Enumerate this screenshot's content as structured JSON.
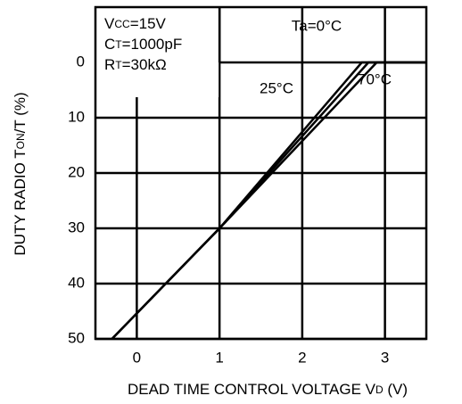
{
  "chart_data": {
    "type": "line",
    "xlabel": [
      {
        "text": "DEAD TIME CONTROL VOLTAGE V"
      },
      {
        "text": "D",
        "sub": true
      },
      {
        "text": " (V)"
      }
    ],
    "ylabel": [
      {
        "text": "DUTY RADIO T"
      },
      {
        "text": "ON",
        "sub": true
      },
      {
        "text": "/T (%)"
      }
    ],
    "conditions": [
      [
        {
          "text": "V"
        },
        {
          "text": "CC",
          "sub": true
        },
        {
          "text": "=15V"
        }
      ],
      [
        {
          "text": "C"
        },
        {
          "text": "T",
          "sub": true
        },
        {
          "text": "=1000pF"
        }
      ],
      [
        {
          "text": "R"
        },
        {
          "text": "T",
          "sub": true
        },
        {
          "text": "=30kΩ"
        }
      ]
    ],
    "xlim": [
      -0.5,
      3.5
    ],
    "xticks": [
      0,
      1,
      2,
      3
    ],
    "ylim": [
      50,
      -10
    ],
    "yticks": [
      0,
      10,
      20,
      30,
      40,
      50
    ],
    "grid": true,
    "series": [
      {
        "name": "Ta=0°C",
        "color": "#000000",
        "x": [
          -0.3,
          1,
          2.72,
          3.5
        ],
        "values": [
          50,
          30,
          0,
          0
        ]
      },
      {
        "name": "25°C",
        "color": "#000000",
        "x": [
          -0.3,
          1,
          2.8,
          3.5
        ],
        "values": [
          50,
          30,
          0,
          0
        ]
      },
      {
        "name": "70°C",
        "color": "#000000",
        "x": [
          -0.3,
          1,
          2.9,
          3.5
        ],
        "values": [
          50,
          30,
          0,
          0
        ]
      }
    ]
  }
}
